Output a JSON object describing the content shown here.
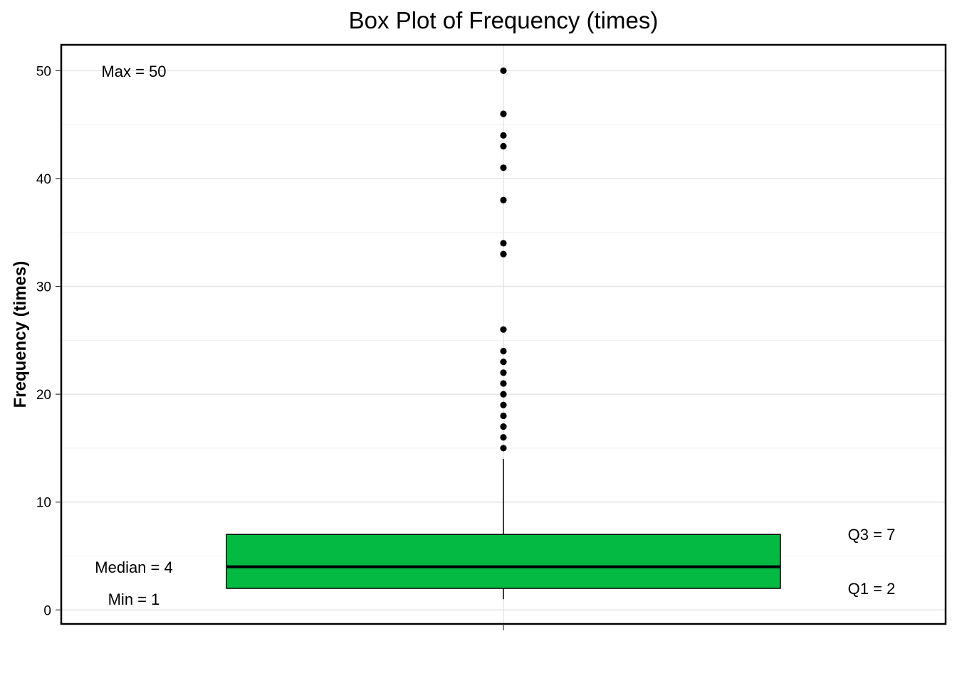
{
  "chart_data": {
    "type": "box",
    "title": "Box Plot of Frequency (times)",
    "ylabel": "Frequency (times)",
    "xlabel": "",
    "ylim": [
      -1.3,
      52.4
    ],
    "yticks": [
      0,
      10,
      20,
      30,
      40,
      50
    ],
    "grid": true,
    "stats": {
      "min": 1,
      "q1": 2,
      "median": 4,
      "q3": 7,
      "max": 50,
      "whisker_low": 1,
      "whisker_high": 14
    },
    "outliers": [
      15,
      16,
      17,
      18,
      19,
      20,
      21,
      22,
      23,
      24,
      26,
      33,
      34,
      38,
      41,
      43,
      44,
      46,
      50
    ],
    "box_color": "#04BA42",
    "annotations": {
      "max": "Max =  50",
      "median": "Median =  4",
      "min": "Min =  1",
      "q3": "Q3 =  7",
      "q1": "Q1 =  2"
    }
  }
}
